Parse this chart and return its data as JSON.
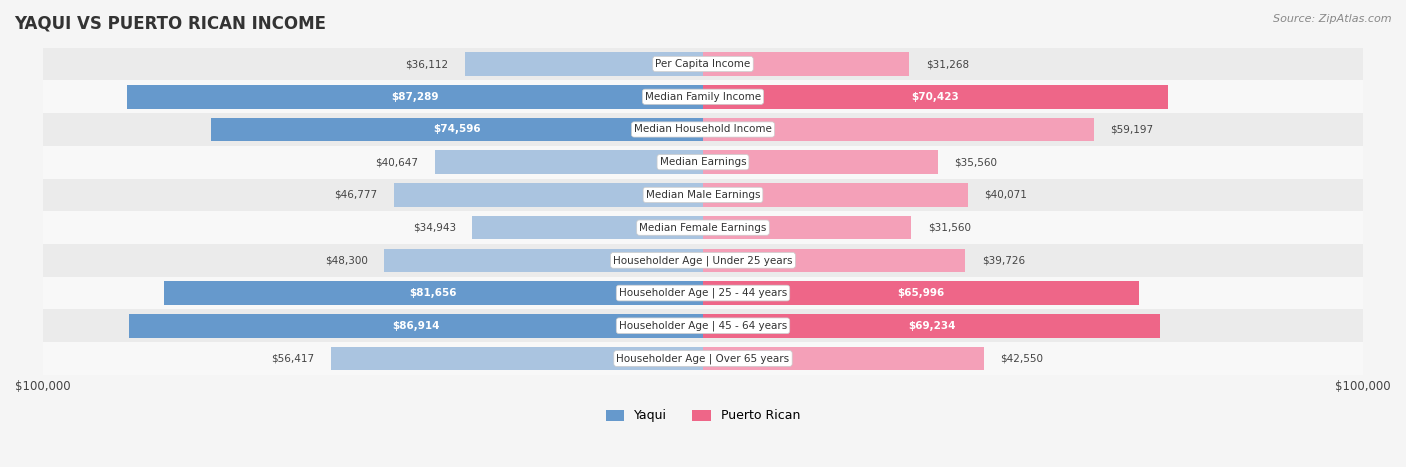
{
  "title": "YAQUI VS PUERTO RICAN INCOME",
  "source": "Source: ZipAtlas.com",
  "categories": [
    "Per Capita Income",
    "Median Family Income",
    "Median Household Income",
    "Median Earnings",
    "Median Male Earnings",
    "Median Female Earnings",
    "Householder Age | Under 25 years",
    "Householder Age | 25 - 44 years",
    "Householder Age | 45 - 64 years",
    "Householder Age | Over 65 years"
  ],
  "yaqui_values": [
    36112,
    87289,
    74596,
    40647,
    46777,
    34943,
    48300,
    81656,
    86914,
    56417
  ],
  "puerto_rican_values": [
    31268,
    70423,
    59197,
    35560,
    40071,
    31560,
    39726,
    65996,
    69234,
    42550
  ],
  "max_value": 100000,
  "yaqui_color_strong": "#6699cc",
  "yaqui_color_light": "#aac4e0",
  "puerto_rican_color_strong": "#ee6688",
  "puerto_rican_color_light": "#f4a0b8",
  "label_threshold": 60000,
  "bg_color": "#f0f0f0",
  "row_bg_color": "#e8e8e8",
  "row_alt_bg": "#ffffff",
  "center_label_bg": "#ffffff",
  "legend_yaqui": "Yaqui",
  "legend_puerto_rican": "Puerto Rican",
  "x_axis_label_left": "$100,000",
  "x_axis_label_right": "$100,000"
}
